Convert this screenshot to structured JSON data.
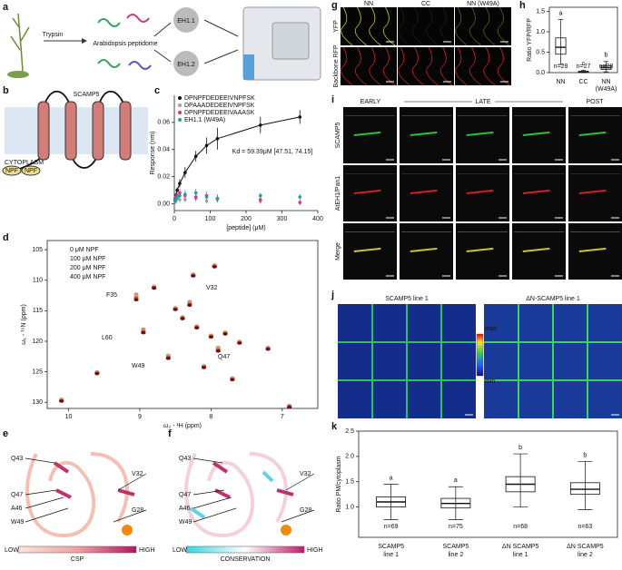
{
  "panel_labels": [
    "a",
    "b",
    "c",
    "d",
    "e",
    "f",
    "g",
    "h",
    "i",
    "j",
    "k"
  ],
  "figure_a": {
    "enzyme": "Trypsin",
    "peptidome": "Arabidopsis peptidome",
    "proteins": [
      "EH1.1",
      "EH1.2"
    ]
  },
  "figure_b": {
    "title": "SCAMP5",
    "compartment": "CYTOPLASM",
    "motifs": [
      "NPF",
      "NPF"
    ]
  },
  "figure_e": {
    "residues": [
      "Q43",
      "Q47",
      "A46",
      "W49",
      "V32",
      "G28"
    ],
    "scale": {
      "title": "CSP",
      "low": "LOW",
      "high": "HIGH"
    }
  },
  "figure_f": {
    "residues": [
      "Q43",
      "Q47",
      "A46",
      "W49",
      "V32",
      "G28"
    ],
    "scale": {
      "title": "CONSERVATION",
      "low": "LOW",
      "high": "HIGH"
    }
  },
  "figure_g": {
    "columns": [
      "NN",
      "CC",
      "NN (W49A)"
    ],
    "rows": [
      "YFP",
      "Backbone RFP"
    ]
  },
  "figure_i": {
    "stages": [
      "EARLY",
      "LATE",
      "POST"
    ],
    "rows": [
      "SCAMP5",
      "AtEH1/Pan1",
      "Merge"
    ]
  },
  "figure_j": {
    "panels": [
      "SCAMP5 line 1",
      "ΔN-SCAMP5 line 1"
    ],
    "colorbar": {
      "max": "max",
      "min": "min"
    }
  },
  "chart_data": [
    {
      "type": "scatter",
      "xlabel": "[peptide] (μM)",
      "ylabel": "Response (nm)",
      "annotation": "Kd = 59.39μM [47.51, 74.15]",
      "xlim": [
        0,
        400
      ],
      "xticks": [
        0,
        100,
        200,
        300,
        400
      ],
      "ylim": [
        -0.005,
        0.08
      ],
      "yticks": [
        {
          "value": 0,
          "label": "0.00"
        },
        {
          "value": 0.02,
          "label": "0.02"
        },
        {
          "value": 0.04,
          "label": "0.04"
        },
        {
          "value": 0.06,
          "label": "0.06"
        }
      ],
      "x": [
        2,
        4,
        8,
        15,
        30,
        60,
        90,
        120,
        240,
        350
      ],
      "series": [
        {
          "name": "DPNPFDEDEEIVNPFSK",
          "color": "#111111",
          "line": true,
          "values": [
            0.003,
            0.006,
            0.01,
            0.015,
            0.023,
            0.035,
            0.043,
            0.048,
            0.058,
            0.064
          ],
          "errors": [
            0.001,
            0.002,
            0.002,
            0.003,
            0.004,
            0.004,
            0.006,
            0.008,
            0.006,
            0.005
          ]
        },
        {
          "name": "DPAAADEDEEIVNPFSK",
          "color": "#a0a0a0",
          "values": [
            0.001,
            0.002,
            0.004,
            0.003,
            0.003,
            0.004,
            0.002,
            0.003,
            0.002,
            0.001
          ],
          "errors": [
            0.001,
            0.001,
            0.002,
            0.002,
            0.002,
            0.002,
            0.002,
            0.002,
            0.002,
            0.001
          ]
        },
        {
          "name": "DPNPFDEDEEIVAAASK",
          "color": "#e0308a",
          "values": [
            0.004,
            0.005,
            0.006,
            0.008,
            0.006,
            0.005,
            0.006,
            0.004,
            0.003,
            0.001
          ],
          "errors": [
            0.002,
            0.002,
            0.003,
            0.003,
            0.003,
            0.003,
            0.003,
            0.003,
            0.003,
            0.002
          ]
        },
        {
          "name": "EH1.1 (W49A)",
          "color": "#1fa0a0",
          "values": [
            0.002,
            0.003,
            0.005,
            0.006,
            0.007,
            0.008,
            0.005,
            0.004,
            0.006,
            0.005
          ],
          "errors": [
            0.001,
            0.002,
            0.002,
            0.002,
            0.003,
            0.003,
            0.002,
            0.002,
            0.002,
            0.002
          ]
        }
      ]
    },
    {
      "type": "nmr",
      "xlabel": "ω₂ - ¹H (ppm)",
      "ylabel": "ω₁ - ¹⁵N (ppm)",
      "annotations": [
        "F35",
        "V32",
        "L60",
        "W49",
        "Q47"
      ],
      "xlim": [
        10.3,
        6.5
      ],
      "xticks": [
        10,
        9,
        8,
        7
      ],
      "ylim": [
        103.5,
        131
      ],
      "yticks": [
        105,
        110,
        115,
        120,
        125,
        130
      ],
      "x": [
        9.05,
        8.3,
        8.95,
        8.6,
        8.4,
        8.2,
        8.0,
        7.9,
        7.8,
        7.6,
        8.5,
        8.1,
        7.7,
        8.8,
        9.6,
        10.1,
        7.2,
        6.9,
        8.25,
        7.95
      ],
      "series": [
        {
          "name": "0 μM NPF",
          "color": "#9a9a9a",
          "values": [
            112.3,
            113.5,
            118.0,
            122.3,
            116.0,
            117.5,
            119.0,
            121.0,
            118.5,
            120.0,
            114.5,
            124.0,
            126.0,
            111.0,
            125.0,
            129.5,
            121.0,
            130.5,
            109.0,
            107.5
          ]
        },
        {
          "name": "100 μM NPF",
          "color": "#f0a050",
          "values": [
            112.6,
            113.7,
            118.2,
            122.4,
            116.1,
            117.6,
            119.1,
            121.2,
            118.6,
            120.1,
            114.6,
            124.1,
            126.1,
            111.1,
            125.1,
            129.6,
            121.1,
            130.6,
            109.1,
            107.6
          ]
        },
        {
          "name": "200 μM NPF",
          "color": "#b85a3a",
          "values": [
            112.9,
            113.9,
            118.4,
            122.6,
            116.2,
            117.7,
            119.2,
            121.4,
            118.7,
            120.2,
            114.7,
            124.2,
            126.2,
            111.2,
            125.2,
            129.7,
            121.2,
            130.7,
            109.2,
            107.7
          ]
        },
        {
          "name": "400 μM NPF",
          "color": "#6e0f0f",
          "values": [
            113.2,
            114.1,
            118.6,
            122.8,
            116.3,
            117.8,
            119.3,
            121.6,
            118.8,
            120.3,
            114.8,
            124.3,
            126.3,
            111.3,
            125.3,
            129.8,
            121.3,
            130.8,
            109.3,
            107.8
          ]
        }
      ]
    },
    {
      "type": "box",
      "ylabel": "Ratio YFP/RFP",
      "categories": [
        "NN",
        "CC",
        "NN (W49A)"
      ],
      "ylim": [
        0,
        1.6
      ],
      "yticks": [
        {
          "value": 0,
          "label": "0.0"
        },
        {
          "value": 0.5,
          "label": "0.5"
        },
        {
          "value": 1,
          "label": "1.0"
        },
        {
          "value": 1.5,
          "label": "1.5"
        }
      ],
      "min": [
        0.2,
        0.0,
        0.02
      ],
      "q1": [
        0.45,
        0.01,
        0.08
      ],
      "median": [
        0.62,
        0.02,
        0.12
      ],
      "q3": [
        0.85,
        0.03,
        0.17
      ],
      "max": [
        1.3,
        0.06,
        0.27
      ],
      "n_labels": [
        "n=28",
        "n=27",
        "n=28"
      ],
      "letters": [
        "a",
        "c",
        "b"
      ],
      "color": "#111111"
    },
    {
      "type": "box",
      "ylabel": "Ratio PM/cytoplasm",
      "categories": [
        "SCAMP5 line 1",
        "SCAMP5 line 2",
        "ΔN SCAMP5 line 1",
        "ΔN SCAMP5 line 2"
      ],
      "ylim": [
        0.4,
        2.5
      ],
      "yticks": [
        {
          "value": 1,
          "label": "1.0"
        },
        {
          "value": 1.5,
          "label": "1.5"
        },
        {
          "value": 2,
          "label": "2.0"
        },
        {
          "value": 2.5,
          "label": "2.5"
        }
      ],
      "min": [
        0.75,
        0.75,
        1.0,
        0.95
      ],
      "q1": [
        1.0,
        0.98,
        1.3,
        1.25
      ],
      "median": [
        1.1,
        1.07,
        1.45,
        1.35
      ],
      "q3": [
        1.2,
        1.17,
        1.6,
        1.48
      ],
      "max": [
        1.45,
        1.4,
        2.05,
        1.9
      ],
      "n_labels": [
        "n=69",
        "n=75",
        "n=68",
        "n=63"
      ],
      "letters": [
        "a",
        "a",
        "b",
        "b"
      ],
      "color": "#111111"
    }
  ]
}
